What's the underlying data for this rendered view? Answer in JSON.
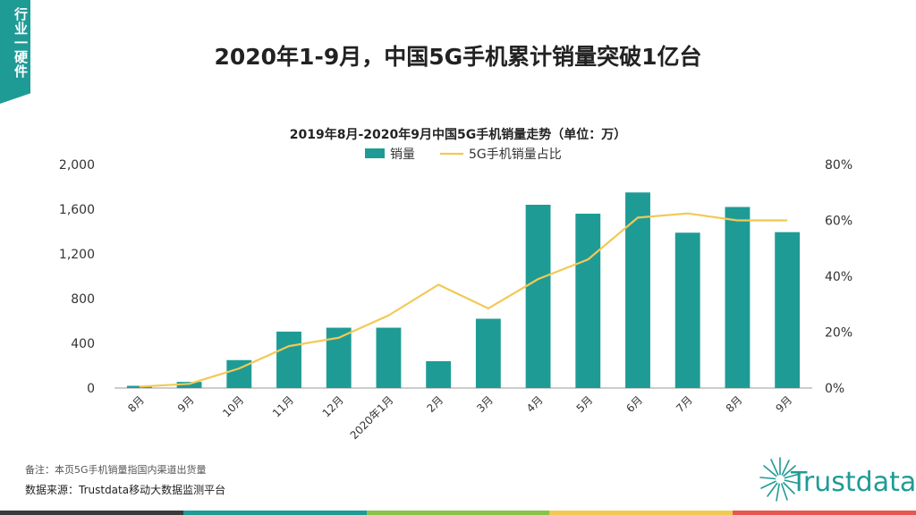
{
  "side_tab": {
    "label": "行业一硬件"
  },
  "page_title": "2020年1-9月，中国5G手机累计销量突破1亿台",
  "chart_data": {
    "type": "bar+line",
    "title": "2019年8月-2020年9月中国5G手机销量走势（单位：万）",
    "categories": [
      "8月",
      "9月",
      "10月",
      "11月",
      "12月",
      "2020年1月",
      "2月",
      "3月",
      "4月",
      "5月",
      "6月",
      "7月",
      "8月",
      "9月"
    ],
    "series": [
      {
        "name": "销量",
        "type": "bar",
        "axis": "left",
        "color": "#1f9b96",
        "values": [
          20,
          55,
          250,
          505,
          540,
          540,
          240,
          620,
          1640,
          1560,
          1750,
          1390,
          1620,
          1395
        ]
      },
      {
        "name": "5G手机销量占比",
        "type": "line",
        "axis": "right",
        "color": "#f2c955",
        "values": [
          0.5,
          1.5,
          7,
          15,
          18,
          26,
          37,
          28.5,
          39,
          46,
          61,
          62.5,
          60,
          60
        ]
      }
    ],
    "y_left": {
      "min": 0,
      "max": 2000,
      "ticks": [
        0,
        400,
        800,
        1200,
        1600,
        2000
      ],
      "tick_labels": [
        "0",
        "400",
        "800",
        "1,200",
        "1,600",
        "2,000"
      ]
    },
    "y_right": {
      "min": 0,
      "max": 80,
      "ticks": [
        0,
        20,
        40,
        60,
        80
      ],
      "tick_labels": [
        "0%",
        "20%",
        "40%",
        "60%",
        "80%"
      ]
    },
    "legend": {
      "position": "top-center",
      "entries": [
        "销量",
        "5G手机销量占比"
      ]
    },
    "grid": false
  },
  "footer": {
    "note": "备注：本页5G手机销量指国内渠道出货量",
    "source": "数据来源：Trustdata移动大数据监测平台",
    "brand": "Trustdata"
  },
  "colors": {
    "accent": "#1f9b96",
    "line": "#f2c955",
    "bottom_bar": [
      "#3a3a3a",
      "#1f9b96",
      "#8bc34a",
      "#f2c955",
      "#e8574f"
    ]
  }
}
